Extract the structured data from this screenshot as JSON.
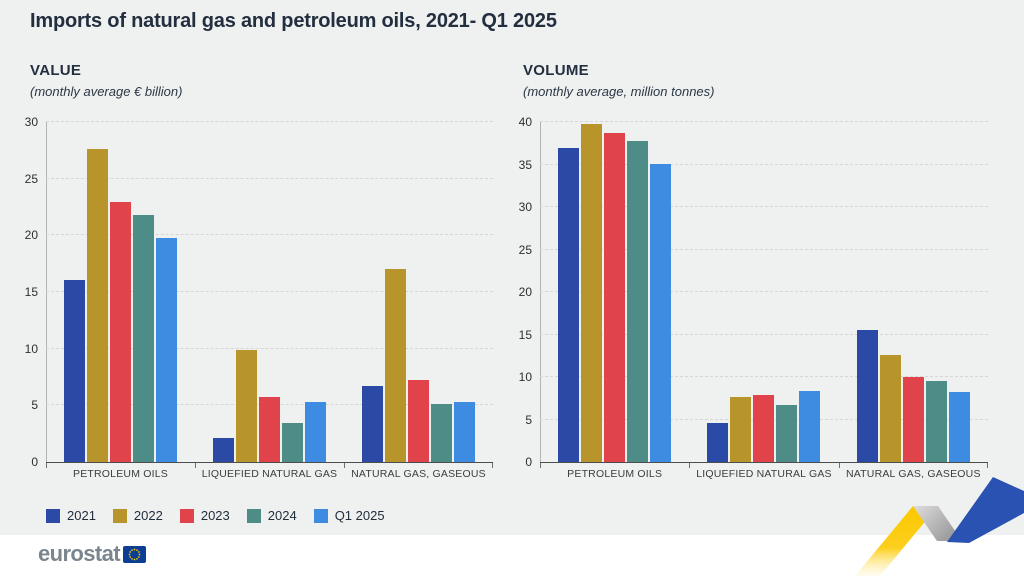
{
  "page": {
    "title": "Imports of natural gas and petroleum oils, 2021- Q1 2025",
    "panel_background": "#eff0f0",
    "footer_background": "#ffffff"
  },
  "legend": {
    "items": [
      {
        "label": "2021",
        "color": "#2b4aa5"
      },
      {
        "label": "2022",
        "color": "#b8952b"
      },
      {
        "label": "2023",
        "color": "#e0444a"
      },
      {
        "label": "2024",
        "color": "#4e8d87"
      },
      {
        "label": "Q1 2025",
        "color": "#3d8ce2"
      }
    ]
  },
  "chart_data": [
    {
      "type": "bar",
      "title": "VALUE",
      "subtitle": "(monthly average € billion)",
      "categories": [
        "PETROLEUM OILS",
        "LIQUEFIED NATURAL GAS",
        "NATURAL GAS, GASEOUS"
      ],
      "series": [
        {
          "name": "2021",
          "color": "#2b4aa5",
          "values": [
            16.1,
            2.1,
            6.7
          ]
        },
        {
          "name": "2022",
          "color": "#b8952b",
          "values": [
            27.6,
            9.9,
            17.0
          ]
        },
        {
          "name": "2023",
          "color": "#e0444a",
          "values": [
            22.9,
            5.7,
            7.2
          ]
        },
        {
          "name": "2024",
          "color": "#4e8d87",
          "values": [
            21.8,
            3.4,
            5.1
          ]
        },
        {
          "name": "Q1 2025",
          "color": "#3d8ce2",
          "values": [
            19.8,
            5.3,
            5.3
          ]
        }
      ],
      "ylim": [
        0,
        30
      ],
      "ytick_step": 5,
      "grid": "horizontal-dashed",
      "legend_position": "bottom-shared"
    },
    {
      "type": "bar",
      "title": "VOLUME",
      "subtitle": "(monthly average, million tonnes)",
      "categories": [
        "PETROLEUM OILS",
        "LIQUEFIED NATURAL GAS",
        "NATURAL GAS, GASEOUS"
      ],
      "series": [
        {
          "name": "2021",
          "color": "#2b4aa5",
          "values": [
            37.0,
            4.6,
            15.5
          ]
        },
        {
          "name": "2022",
          "color": "#b8952b",
          "values": [
            39.8,
            7.6,
            12.6
          ]
        },
        {
          "name": "2023",
          "color": "#e0444a",
          "values": [
            38.7,
            7.9,
            10.0
          ]
        },
        {
          "name": "2024",
          "color": "#4e8d87",
          "values": [
            37.8,
            6.7,
            9.5
          ]
        },
        {
          "name": "Q1 2025",
          "color": "#3d8ce2",
          "values": [
            35.1,
            8.4,
            8.2
          ]
        }
      ],
      "ylim": [
        0,
        40
      ],
      "ytick_step": 5,
      "grid": "horizontal-dashed",
      "legend_position": "bottom-shared"
    }
  ],
  "footer": {
    "logo_text": "eurostat",
    "eu_flag": {
      "blue": "#0c3f94",
      "stars": "#ffcc00"
    }
  },
  "branding": {
    "ribbon_yellow": "#fbc800",
    "ribbon_silver": "#b5b5b5",
    "ribbon_blue": "#2a52b2"
  }
}
